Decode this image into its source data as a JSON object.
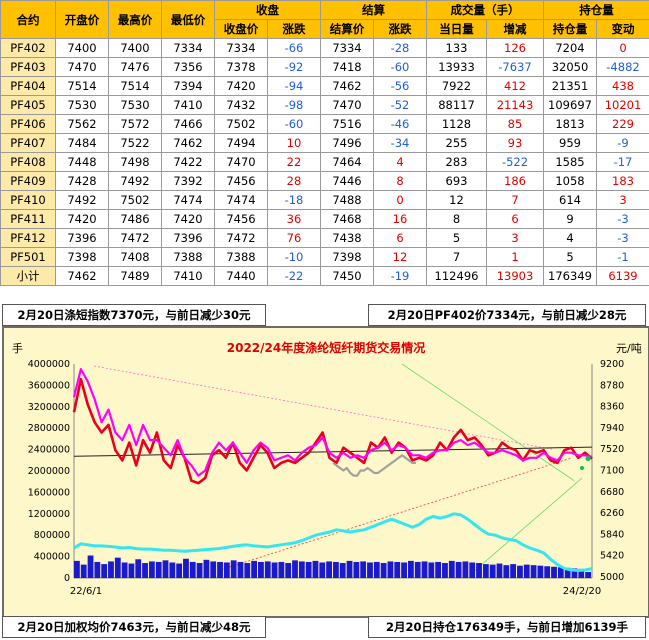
{
  "table": {
    "headers_top": [
      "合约",
      "开盘价",
      "最高价",
      "最低价",
      "收盘",
      "结算",
      "成交量（手）",
      "持仓量"
    ],
    "headers_sub": [
      "收盘价",
      "涨跌",
      "结算价",
      "涨跌",
      "当日量",
      "增减",
      "持仓量",
      "变动"
    ],
    "rows": [
      [
        "PF402",
        "7400",
        "7400",
        "7334",
        "7334",
        "-66",
        "7334",
        "-28",
        "133",
        "126",
        "7204",
        "0"
      ],
      [
        "PF403",
        "7470",
        "7476",
        "7356",
        "7378",
        "-92",
        "7418",
        "-60",
        "13933",
        "-7637",
        "32050",
        "-4882"
      ],
      [
        "PF404",
        "7514",
        "7514",
        "7394",
        "7420",
        "-94",
        "7462",
        "-56",
        "7922",
        "412",
        "21351",
        "438"
      ],
      [
        "PF405",
        "7530",
        "7530",
        "7410",
        "7432",
        "-98",
        "7470",
        "-52",
        "88117",
        "21143",
        "109697",
        "10201"
      ],
      [
        "PF406",
        "7562",
        "7572",
        "7466",
        "7502",
        "-60",
        "7516",
        "-46",
        "1128",
        "85",
        "1813",
        "229"
      ],
      [
        "PF407",
        "7484",
        "7522",
        "7462",
        "7494",
        "10",
        "7496",
        "-34",
        "255",
        "93",
        "959",
        "-9"
      ],
      [
        "PF408",
        "7448",
        "7498",
        "7422",
        "7470",
        "22",
        "7464",
        "4",
        "283",
        "-522",
        "1585",
        "-17"
      ],
      [
        "PF409",
        "7428",
        "7492",
        "7392",
        "7456",
        "28",
        "7446",
        "8",
        "693",
        "186",
        "1058",
        "183"
      ],
      [
        "PF410",
        "7492",
        "7502",
        "7474",
        "7474",
        "-18",
        "7488",
        "0",
        "12",
        "7",
        "614",
        "3"
      ],
      [
        "PF411",
        "7420",
        "7486",
        "7420",
        "7456",
        "36",
        "7468",
        "16",
        "8",
        "6",
        "9",
        "-3"
      ],
      [
        "PF412",
        "7396",
        "7472",
        "7396",
        "7472",
        "76",
        "7438",
        "6",
        "5",
        "3",
        "4",
        "-3"
      ],
      [
        "PF501",
        "7398",
        "7408",
        "7388",
        "7388",
        "-10",
        "7398",
        "12",
        "7",
        "1",
        "5",
        "-1"
      ],
      [
        "小计",
        "7462",
        "7489",
        "7410",
        "7440",
        "-22",
        "7450",
        "-19",
        "112496",
        "13903",
        "176349",
        "6139"
      ]
    ]
  },
  "info": {
    "top_left": "2月20日涤短指数7370元，与前日减少30元",
    "top_right": "2月20日PF402价7334元，与前日减少28元",
    "bottom_left": "2月20日加权均价7463元，与前日减少48元",
    "bottom_right": "2月20日持仓176349手，与前日增加6139手"
  },
  "colors": {
    "header_bg": "#ffc000",
    "contract_bg": "#fde9a8",
    "up": "#e00000",
    "down": "#1f5ed6",
    "chart_bg": "#fdf7c9",
    "price_line": "#e8001c",
    "index_line": "#ff00ff",
    "gray_line": "#a0a0a0",
    "oi_line": "#33e6f0",
    "volume_bar": "#1a1acc"
  },
  "chart_data": {
    "type": "line",
    "title": "2022/24年度涤纶短纤期货交易情况",
    "left_axis": {
      "unit": "手",
      "min": 0,
      "max": 4000000,
      "ticks": [
        0,
        400000,
        800000,
        1200000,
        1600000,
        2000000,
        2400000,
        2800000,
        3200000,
        3600000,
        4000000
      ]
    },
    "right_axis": {
      "unit": "元/吨",
      "min": 4980,
      "max": 9200,
      "ticks": [
        5000,
        5420,
        5840,
        6260,
        6680,
        7100,
        7520,
        7940,
        8360,
        8780,
        9200
      ]
    },
    "x_labels": [
      "22/6/1",
      "24/2/20"
    ],
    "series": [
      {
        "name": "",
        "axis": "right",
        "color": "red",
        "values": [
          8250,
          8900,
          8400,
          8050,
          7850,
          8000,
          7500,
          7300,
          7650,
          7200,
          7700,
          7450,
          7850,
          7300,
          7150,
          7600,
          7350,
          6900,
          6850,
          6950,
          7400,
          7500,
          7350,
          7650,
          7250,
          7100,
          7350,
          7600,
          7450,
          7150,
          7250,
          7300,
          7250,
          7350,
          7450,
          7650,
          7850,
          7350,
          7250,
          7550,
          7450,
          7350,
          7250,
          7650,
          7550,
          7750,
          7450,
          7650,
          7550,
          7300,
          7350,
          7300,
          7400,
          7650,
          7500,
          7750,
          7900,
          7700,
          7750,
          7600,
          7400,
          7450,
          7650,
          7550,
          7500,
          7300,
          7500,
          7450,
          7500,
          7300,
          7250,
          7500,
          7550,
          7350,
          7450,
          7334
        ]
      },
      {
        "name": "",
        "axis": "right",
        "color": "magenta",
        "values": [
          8550,
          9100,
          8850,
          8500,
          8050,
          8300,
          7850,
          7700,
          8000,
          7600,
          8000,
          7700,
          7700,
          7550,
          7400,
          7700,
          7350,
          7200,
          7000,
          7100,
          7450,
          7650,
          7500,
          7650,
          7450,
          7250,
          7500,
          7650,
          7550,
          7300,
          7350,
          7400,
          7300,
          7450,
          7550,
          7600,
          7750,
          7450,
          7350,
          7450,
          7350,
          7400,
          7350,
          7500,
          7550,
          7650,
          7500,
          7600,
          7550,
          7400,
          7400,
          7350,
          7450,
          7500,
          7500,
          7650,
          7700,
          7600,
          7650,
          7550,
          7450,
          7450,
          7500,
          7450,
          7400,
          7300,
          7350,
          7350,
          7450,
          7350,
          7300,
          7450,
          7450,
          7400,
          7400,
          7370
        ]
      },
      {
        "name": "",
        "axis": "right",
        "color": "gray",
        "values": [
          7250,
          7200,
          7150,
          7100,
          7150,
          7050,
          7000,
          7000,
          7100,
          7100,
          7150,
          7100,
          7050,
          7050,
          7100,
          7150,
          7200,
          7250,
          7300,
          7350,
          7400,
          7350,
          7300,
          7250,
          7250
        ]
      },
      {
        "name": "",
        "axis": "left",
        "color": "cyan",
        "values": [
          560000,
          640000,
          620000,
          600000,
          600000,
          590000,
          580000,
          560000,
          570000,
          550000,
          540000,
          540000,
          530000,
          520000,
          520000,
          510000,
          500000,
          510000,
          520000,
          530000,
          540000,
          550000,
          570000,
          590000,
          610000,
          620000,
          600000,
          590000,
          580000,
          600000,
          620000,
          640000,
          660000,
          700000,
          750000,
          800000,
          830000,
          860000,
          900000,
          880000,
          860000,
          880000,
          900000,
          950000,
          1000000,
          1050000,
          1100000,
          1050000,
          1000000,
          950000,
          1000000,
          1100000,
          1150000,
          1120000,
          1150000,
          1200000,
          1180000,
          1100000,
          1000000,
          900000,
          820000,
          800000,
          750000,
          720000,
          700000,
          620000,
          560000,
          520000,
          470000,
          350000,
          250000,
          180000,
          150000,
          140000,
          150000,
          176349
        ]
      },
      {
        "name": "",
        "axis": "left",
        "color": "blue",
        "type": "bar",
        "values": [
          320000,
          250000,
          420000,
          300000,
          260000,
          310000,
          380000,
          290000,
          270000,
          350000,
          280000,
          310000,
          300000,
          330000,
          290000,
          270000,
          360000,
          300000,
          280000,
          340000,
          310000,
          300000,
          290000,
          330000,
          300000,
          280000,
          320000,
          300000,
          310000,
          290000,
          300000,
          280000,
          330000,
          310000,
          300000,
          320000,
          290000,
          310000,
          300000,
          280000,
          320000,
          300000,
          310000,
          290000,
          300000,
          280000,
          310000,
          300000,
          290000,
          320000,
          300000,
          310000,
          290000,
          300000,
          280000,
          320000,
          300000,
          310000,
          290000,
          280000,
          260000,
          250000,
          270000,
          240000,
          260000,
          230000,
          250000,
          240000,
          230000,
          220000,
          210000,
          200000,
          190000,
          180000,
          170000,
          112496
        ]
      }
    ]
  }
}
